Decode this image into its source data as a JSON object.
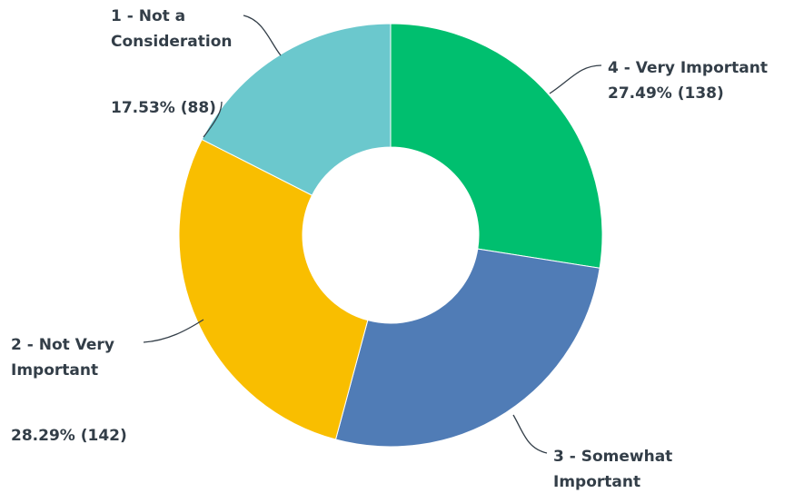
{
  "chart_data": {
    "type": "pie",
    "donut": true,
    "categories": [
      "4 - Very Important",
      "3 - Somewhat Important",
      "2 - Not Very Important",
      "1 - Not a Consideration"
    ],
    "values": [
      27.49,
      26.69,
      28.29,
      17.53
    ],
    "counts": [
      138,
      134,
      142,
      88
    ],
    "colors": [
      "#00bf6f",
      "#507cb6",
      "#f9be00",
      "#6bc8cd"
    ],
    "labels": {
      "very_important": {
        "line1": "4 - Very Important",
        "value": "27.49% (138)"
      },
      "somewhat_important": {
        "line1": "3 - Somewhat",
        "line2": "Important"
      },
      "not_very_important": {
        "line1": "2 - Not Very",
        "line2": "Important",
        "value": "28.29% (142)"
      },
      "not_consideration": {
        "line1": "1 - Not a",
        "line2": "Consideration",
        "value": "17.53% (88)"
      }
    }
  }
}
